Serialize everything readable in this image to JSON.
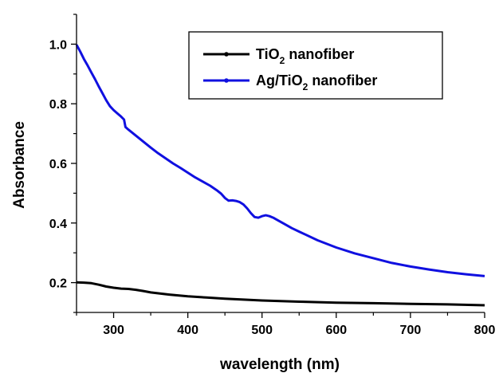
{
  "chart_data": {
    "type": "line",
    "xlabel": "wavelength (nm)",
    "ylabel": "Absorbance",
    "xlim": [
      250,
      800
    ],
    "ylim": [
      0.1,
      1.1
    ],
    "x_ticks": [
      300,
      400,
      500,
      600,
      700,
      800
    ],
    "x_tick_labels": [
      "300",
      "400",
      "500",
      "600",
      "700",
      "800"
    ],
    "y_ticks": [
      0.2,
      0.4,
      0.6,
      0.8,
      1.0
    ],
    "y_tick_labels": [
      "0.2",
      "0.4",
      "0.6",
      "0.8",
      "1.0"
    ],
    "grid": false,
    "legend_position": "top-right",
    "series": [
      {
        "name_main": "TiO",
        "name_sub": "2",
        "name_tail": " nanofiber",
        "color": "#000000",
        "x": [
          250,
          260,
          270,
          280,
          290,
          300,
          310,
          320,
          330,
          340,
          350,
          375,
          400,
          425,
          450,
          475,
          500,
          525,
          550,
          600,
          650,
          700,
          750,
          800
        ],
        "y": [
          0.201,
          0.2,
          0.198,
          0.193,
          0.187,
          0.183,
          0.18,
          0.179,
          0.176,
          0.172,
          0.167,
          0.16,
          0.154,
          0.15,
          0.146,
          0.143,
          0.14,
          0.138,
          0.136,
          0.133,
          0.131,
          0.129,
          0.127,
          0.124
        ]
      },
      {
        "name_main": "Ag/TiO",
        "name_sub": "2",
        "name_tail": " nanofiber",
        "color": "#1010e0",
        "x": [
          250,
          255,
          260,
          265,
          270,
          275,
          280,
          285,
          290,
          295,
          300,
          305,
          310,
          314,
          316,
          320,
          330,
          340,
          350,
          360,
          370,
          380,
          390,
          400,
          410,
          420,
          430,
          440,
          445,
          450,
          455,
          460,
          465,
          470,
          475,
          480,
          485,
          490,
          495,
          500,
          505,
          510,
          515,
          520,
          530,
          540,
          550,
          575,
          600,
          625,
          650,
          675,
          700,
          725,
          750,
          775,
          800
        ],
        "y": [
          0.998,
          0.975,
          0.95,
          0.928,
          0.905,
          0.882,
          0.858,
          0.835,
          0.812,
          0.792,
          0.779,
          0.768,
          0.757,
          0.747,
          0.722,
          0.713,
          0.693,
          0.673,
          0.653,
          0.634,
          0.617,
          0.6,
          0.585,
          0.569,
          0.553,
          0.539,
          0.525,
          0.508,
          0.498,
          0.484,
          0.475,
          0.476,
          0.474,
          0.47,
          0.462,
          0.449,
          0.433,
          0.42,
          0.418,
          0.423,
          0.426,
          0.423,
          0.418,
          0.411,
          0.397,
          0.383,
          0.371,
          0.342,
          0.318,
          0.298,
          0.282,
          0.266,
          0.254,
          0.244,
          0.235,
          0.228,
          0.222
        ]
      }
    ]
  }
}
